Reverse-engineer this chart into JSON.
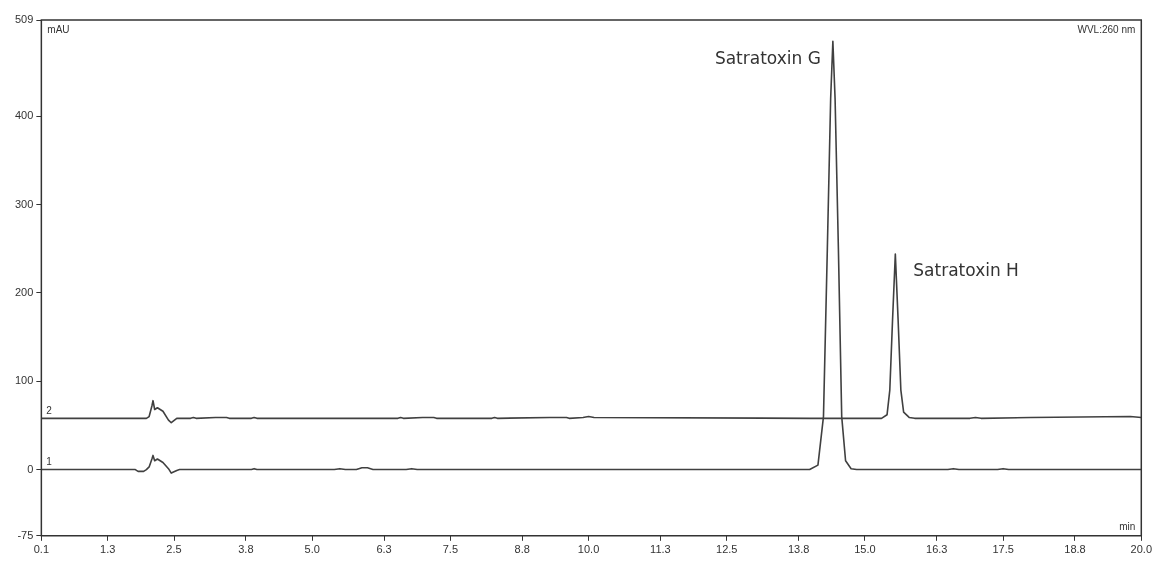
{
  "chart_data": {
    "type": "line",
    "xlabel": "min",
    "ylabel": "mAU",
    "xlim": [
      0.1,
      20.0
    ],
    "ylim": [
      -75,
      509
    ],
    "xticks": [
      0.1,
      1.3,
      2.5,
      3.8,
      {
        "value": 5,
        "label": "5.0"
      },
      6.3,
      7.5,
      8.8,
      {
        "value": 10,
        "label": "10.0"
      },
      11.3,
      12.5,
      13.8,
      {
        "value": 15,
        "label": "15.0"
      },
      16.3,
      17.5,
      18.8,
      {
        "value": 20,
        "label": "20.0"
      }
    ],
    "yticks": [
      -75,
      0,
      100,
      200,
      300,
      400,
      509
    ],
    "grid": false,
    "marker": "none",
    "line_style": "solid",
    "annotations": [
      {
        "text": "Satratoxin G",
        "x": 14.42,
        "y": 485
      },
      {
        "text": "Satratoxin H",
        "x": 15.55,
        "y": 244
      },
      "WVL:260 nm"
    ],
    "series": [
      {
        "name": "2",
        "color": "#404040",
        "x": [
          0.1,
          2.0,
          2.05,
          2.1,
          2.12,
          2.15,
          2.2,
          2.3,
          2.4,
          2.45,
          2.55,
          2.8,
          2.85,
          2.9,
          3.25,
          3.45,
          3.5,
          3.9,
          3.95,
          4.0,
          6.55,
          6.6,
          6.65,
          7.0,
          7.2,
          7.25,
          8.25,
          8.3,
          8.35,
          9.3,
          9.6,
          9.65,
          9.9,
          10.0,
          10.1,
          14.0,
          15.3,
          15.4,
          15.45,
          15.5,
          15.55,
          15.6,
          15.65,
          15.7,
          15.8,
          15.9,
          16.9,
          17.0,
          17.1,
          18.0,
          19.8,
          20.0
        ],
        "values": [
          58,
          58,
          60,
          72,
          78,
          68,
          70,
          66,
          56,
          53,
          58,
          58,
          59,
          58,
          59,
          59,
          58,
          58,
          59,
          58,
          58,
          59,
          58,
          59,
          59,
          58,
          58,
          59,
          58,
          59,
          59,
          58,
          59,
          60,
          59,
          58,
          58,
          62,
          90,
          170,
          244,
          170,
          90,
          65,
          59,
          58,
          58,
          59,
          58,
          59,
          60,
          59
        ]
      },
      {
        "name": "1",
        "color": "#404040",
        "x": [
          0.1,
          1.8,
          1.85,
          1.95,
          2.0,
          2.05,
          2.1,
          2.12,
          2.15,
          2.2,
          2.3,
          2.4,
          2.45,
          2.55,
          2.6,
          3.9,
          3.95,
          4.0,
          5.4,
          5.5,
          5.6,
          5.8,
          5.9,
          6.0,
          6.1,
          6.7,
          6.8,
          6.9,
          14.0,
          14.15,
          14.25,
          14.32,
          14.38,
          14.42,
          14.46,
          14.52,
          14.58,
          14.65,
          14.75,
          14.85,
          16.5,
          16.6,
          16.7,
          17.4,
          17.5,
          17.6,
          19.0,
          20.0
        ],
        "values": [
          0,
          0,
          -2,
          -2,
          0,
          3,
          12,
          16,
          10,
          12,
          8,
          1,
          -4,
          -1,
          0,
          0,
          1,
          0,
          0,
          1,
          0,
          0,
          2,
          2,
          0,
          0,
          1,
          0,
          0,
          5,
          60,
          250,
          420,
          485,
          420,
          250,
          60,
          10,
          1,
          0,
          0,
          1,
          0,
          0,
          1,
          0,
          0,
          0
        ]
      }
    ]
  }
}
